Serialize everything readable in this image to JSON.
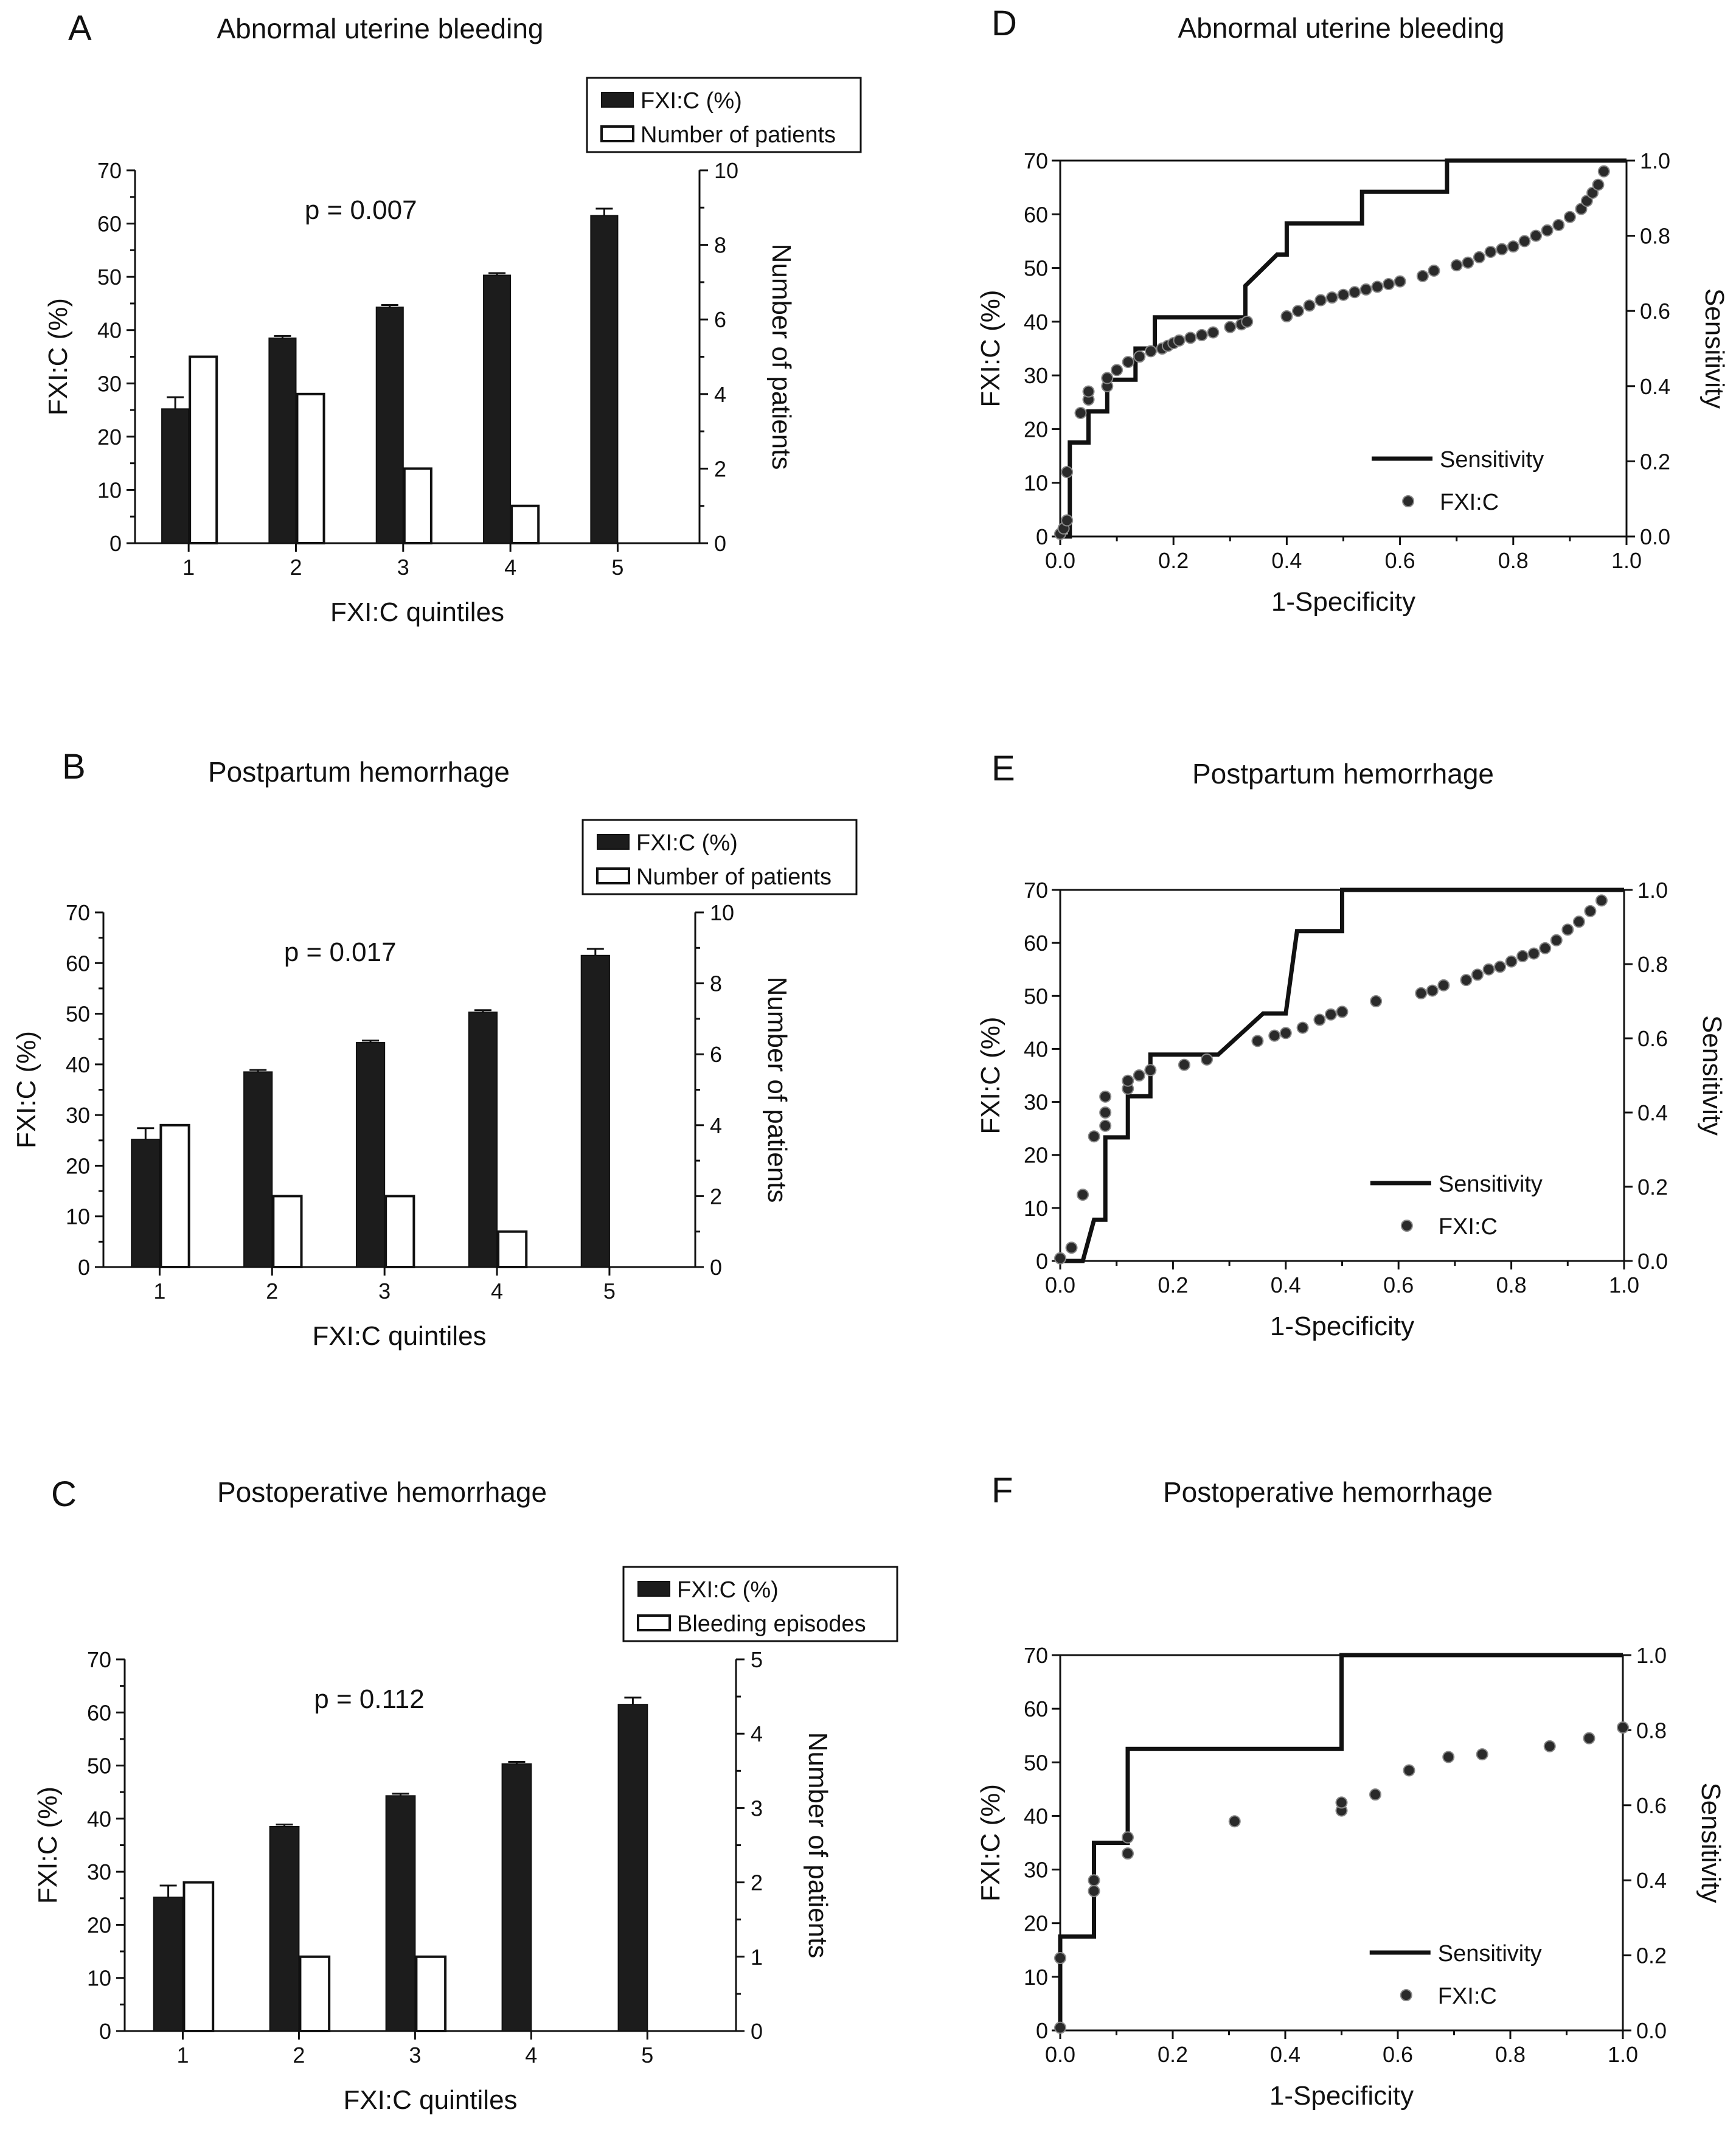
{
  "chart_data": [
    {
      "panel": "A",
      "type": "bar",
      "title": "Abnormal uterine bleeding",
      "xlabel": "FXI:C quintiles",
      "ylabel": "FXI:C (%)",
      "y2label": "Number of patients",
      "categories": [
        "1",
        "2",
        "3",
        "4",
        "5"
      ],
      "ylim": [
        0,
        70
      ],
      "yticks": [
        0,
        10,
        20,
        30,
        40,
        50,
        60,
        70
      ],
      "y2lim": [
        0,
        10
      ],
      "y2ticks": [
        0,
        2,
        4,
        6,
        8,
        10
      ],
      "pvalue": "p = 0.007",
      "legend_position": "top-right",
      "series": [
        {
          "name": "FXI:C (%)",
          "axis": "left",
          "style": "dark",
          "values": [
            25.2,
            38.5,
            44.3,
            50.3,
            61.5
          ],
          "errors": [
            2.2,
            0.4,
            0.4,
            0.4,
            1.3
          ]
        },
        {
          "name": "Number of patients",
          "axis": "right",
          "style": "open",
          "values": [
            5,
            4,
            2,
            1,
            0
          ]
        }
      ]
    },
    {
      "panel": "B",
      "type": "bar",
      "title": "Postpartum hemorrhage",
      "xlabel": "FXI:C quintiles",
      "ylabel": "FXI:C (%)",
      "y2label": "Number of patients",
      "categories": [
        "1",
        "2",
        "3",
        "4",
        "5"
      ],
      "ylim": [
        0,
        70
      ],
      "yticks": [
        0,
        10,
        20,
        30,
        40,
        50,
        60,
        70
      ],
      "y2lim": [
        0,
        10
      ],
      "y2ticks": [
        0,
        2,
        4,
        6,
        8,
        10
      ],
      "pvalue": "p = 0.017",
      "legend_position": "top-right",
      "series": [
        {
          "name": "FXI:C (%)",
          "axis": "left",
          "style": "dark",
          "values": [
            25.2,
            38.5,
            44.3,
            50.3,
            61.5
          ],
          "errors": [
            2.2,
            0.4,
            0.4,
            0.4,
            1.3
          ]
        },
        {
          "name": "Number of patients",
          "axis": "right",
          "style": "open",
          "values": [
            4,
            2,
            2,
            1,
            0
          ]
        }
      ]
    },
    {
      "panel": "C",
      "type": "bar",
      "title": "Postoperative hemorrhage",
      "xlabel": "FXI:C quintiles",
      "ylabel": "FXI:C (%)",
      "y2label": "Number of patients",
      "categories": [
        "1",
        "2",
        "3",
        "4",
        "5"
      ],
      "ylim": [
        0,
        70
      ],
      "yticks": [
        0,
        10,
        20,
        30,
        40,
        50,
        60,
        70
      ],
      "y2lim": [
        0,
        5
      ],
      "y2ticks": [
        0,
        1,
        2,
        3,
        4,
        5
      ],
      "pvalue": "p = 0.112",
      "legend_position": "top-right",
      "series": [
        {
          "name": "FXI:C (%)",
          "axis": "left",
          "style": "dark",
          "values": [
            25.2,
            38.5,
            44.3,
            50.3,
            61.5
          ],
          "errors": [
            2.2,
            0.4,
            0.4,
            0.4,
            1.3
          ]
        },
        {
          "name": "Bleeding episodes",
          "axis": "right",
          "style": "open",
          "values": [
            2,
            1,
            1,
            0,
            0
          ]
        }
      ]
    },
    {
      "panel": "D",
      "type": "line",
      "title": "Abnormal uterine bleeding",
      "xlabel": "1-Specificity",
      "ylabel": "FXI:C (%)",
      "y2label": "Sensitivity",
      "xlim": [
        0,
        1
      ],
      "xticks": [
        "0.0",
        "0.2",
        "0.4",
        "0.6",
        "0.8",
        "1.0"
      ],
      "ylim": [
        0,
        70
      ],
      "yticks": [
        0,
        10,
        20,
        30,
        40,
        50,
        60,
        70
      ],
      "y2lim": [
        0,
        1
      ],
      "y2ticks": [
        "0.0",
        "0.2",
        "0.4",
        "0.6",
        "0.8",
        "1.0"
      ],
      "legend_position": "bottom-right",
      "series": [
        {
          "name": "Sensitivity",
          "type": "step",
          "axis": "right",
          "x": [
            0.0,
            0.0,
            0.017,
            0.017,
            0.05,
            0.05,
            0.083,
            0.083,
            0.133,
            0.133,
            0.167,
            0.167,
            0.2,
            0.267,
            0.327,
            0.327,
            0.383,
            0.4,
            0.4,
            0.533,
            0.533,
            0.683,
            0.683,
            1.0
          ],
          "y": [
            0.0,
            0.0,
            0.0,
            0.25,
            0.25,
            0.333,
            0.333,
            0.417,
            0.417,
            0.5,
            0.5,
            0.583,
            0.583,
            0.583,
            0.583,
            0.667,
            0.75,
            0.75,
            0.833,
            0.833,
            0.917,
            0.917,
            1.0,
            1.0
          ]
        },
        {
          "name": "FXI:C",
          "type": "scatter",
          "axis": "left",
          "x": [
            0.0,
            0.006,
            0.012,
            0.012,
            0.036,
            0.05,
            0.05,
            0.083,
            0.083,
            0.1,
            0.12,
            0.14,
            0.16,
            0.18,
            0.19,
            0.2,
            0.21,
            0.23,
            0.25,
            0.27,
            0.3,
            0.32,
            0.33,
            0.4,
            0.42,
            0.44,
            0.46,
            0.48,
            0.5,
            0.52,
            0.54,
            0.56,
            0.58,
            0.6,
            0.64,
            0.66,
            0.7,
            0.72,
            0.74,
            0.76,
            0.78,
            0.8,
            0.82,
            0.84,
            0.86,
            0.88,
            0.9,
            0.92,
            0.93,
            0.94,
            0.95,
            0.96
          ],
          "y": [
            0.5,
            1.5,
            3.0,
            12.0,
            23.0,
            25.5,
            27.0,
            28.0,
            29.5,
            31.0,
            32.5,
            33.5,
            34.5,
            35.0,
            35.5,
            36.0,
            36.5,
            37.0,
            37.5,
            38.0,
            39.0,
            39.5,
            40.0,
            41.0,
            42.0,
            43.0,
            44.0,
            44.5,
            45.0,
            45.5,
            46.0,
            46.5,
            47.0,
            47.5,
            48.5,
            49.5,
            50.5,
            51.0,
            52.0,
            53.0,
            53.5,
            54.0,
            55.0,
            56.0,
            57.0,
            58.0,
            59.5,
            61.0,
            62.5,
            64.0,
            65.5,
            68.0
          ]
        }
      ]
    },
    {
      "panel": "E",
      "type": "line",
      "title": "Postpartum hemorrhage",
      "xlabel": "1-Specificity",
      "ylabel": "FXI:C (%)",
      "y2label": "Sensitivity",
      "xlim": [
        0,
        1
      ],
      "xticks": [
        "0.0",
        "0.2",
        "0.4",
        "0.6",
        "0.8",
        "1.0"
      ],
      "ylim": [
        0,
        70
      ],
      "yticks": [
        0,
        10,
        20,
        30,
        40,
        50,
        60,
        70
      ],
      "y2lim": [
        0,
        1
      ],
      "y2ticks": [
        "0.0",
        "0.2",
        "0.4",
        "0.6",
        "0.8",
        "1.0"
      ],
      "legend_position": "bottom-right",
      "series": [
        {
          "name": "Sensitivity",
          "type": "step",
          "axis": "right",
          "x": [
            0.0,
            0.04,
            0.06,
            0.08,
            0.08,
            0.12,
            0.12,
            0.16,
            0.16,
            0.28,
            0.36,
            0.4,
            0.42,
            0.5,
            0.5,
            1.0
          ],
          "y": [
            0.0,
            0.0,
            0.111,
            0.111,
            0.333,
            0.333,
            0.444,
            0.444,
            0.556,
            0.556,
            0.667,
            0.667,
            0.889,
            0.889,
            1.0,
            1.0
          ]
        },
        {
          "name": "FXI:C",
          "type": "scatter",
          "axis": "left",
          "x": [
            0.0,
            0.02,
            0.04,
            0.06,
            0.08,
            0.08,
            0.08,
            0.12,
            0.12,
            0.14,
            0.16,
            0.22,
            0.26,
            0.35,
            0.38,
            0.4,
            0.43,
            0.46,
            0.48,
            0.5,
            0.56,
            0.64,
            0.66,
            0.68,
            0.72,
            0.74,
            0.76,
            0.78,
            0.8,
            0.82,
            0.84,
            0.86,
            0.88,
            0.9,
            0.92,
            0.94,
            0.96
          ],
          "y": [
            0.5,
            2.5,
            12.5,
            23.5,
            25.5,
            28.0,
            31.0,
            32.5,
            34.0,
            35.0,
            36.0,
            37.0,
            38.0,
            41.5,
            42.5,
            43.0,
            44.0,
            45.5,
            46.5,
            47.0,
            49.0,
            50.5,
            51.0,
            52.0,
            53.0,
            54.0,
            55.0,
            55.5,
            56.5,
            57.5,
            58.0,
            59.0,
            60.5,
            62.5,
            64.0,
            66.0,
            68.0
          ]
        }
      ]
    },
    {
      "panel": "F",
      "type": "line",
      "title": "Postoperative hemorrhage",
      "xlabel": "1-Specificity",
      "ylabel": "FXI:C (%)",
      "y2label": "Sensitivity",
      "xlim": [
        0,
        1
      ],
      "xticks": [
        "0.0",
        "0.2",
        "0.4",
        "0.6",
        "0.8",
        "1.0"
      ],
      "ylim": [
        0,
        70
      ],
      "yticks": [
        0,
        10,
        20,
        30,
        40,
        50,
        60,
        70
      ],
      "y2lim": [
        0,
        1
      ],
      "y2ticks": [
        "0.0",
        "0.2",
        "0.4",
        "0.6",
        "0.8",
        "1.0"
      ],
      "legend_position": "bottom-right",
      "series": [
        {
          "name": "Sensitivity",
          "type": "step",
          "axis": "right",
          "x": [
            0.0,
            0.0,
            0.06,
            0.06,
            0.12,
            0.12,
            0.5,
            0.5,
            1.0
          ],
          "y": [
            0.0,
            0.25,
            0.25,
            0.5,
            0.5,
            0.75,
            0.75,
            1.0,
            1.0
          ]
        },
        {
          "name": "FXI:C",
          "type": "scatter",
          "axis": "left",
          "x": [
            0.0,
            0.0,
            0.06,
            0.06,
            0.12,
            0.12,
            0.31,
            0.5,
            0.5,
            0.56,
            0.62,
            0.69,
            0.75,
            0.87,
            0.94,
            1.0
          ],
          "y": [
            0.5,
            13.5,
            26.0,
            28.0,
            33.0,
            36.0,
            39.0,
            41.0,
            42.5,
            44.0,
            48.5,
            51.0,
            51.5,
            53.0,
            54.5,
            56.5
          ]
        }
      ]
    }
  ]
}
